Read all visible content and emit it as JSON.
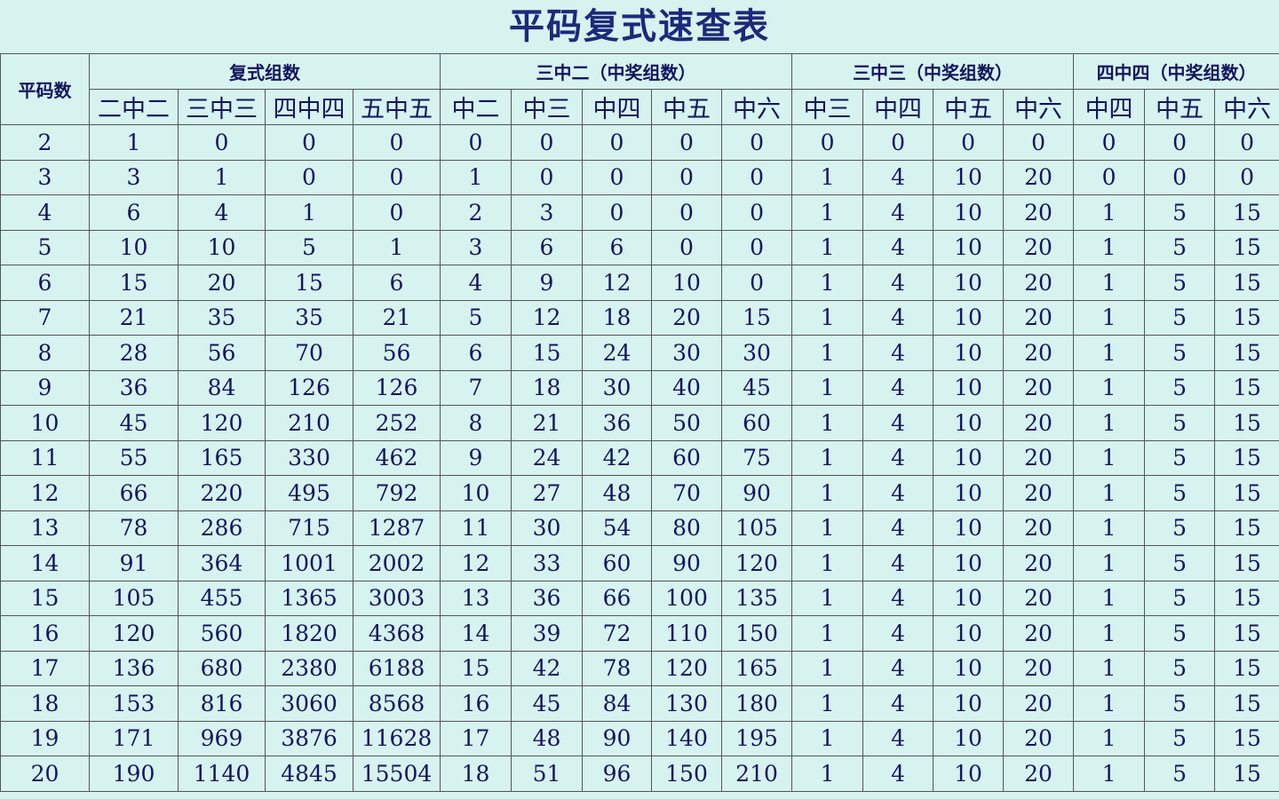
{
  "title": "平码复式速查表",
  "table": {
    "corner": "平码数",
    "groups": [
      {
        "label": "复式组数",
        "columns": [
          "二中二",
          "三中三",
          "四中四",
          "五中五"
        ]
      },
      {
        "label": "三中二（中奖组数）",
        "columns": [
          "中二",
          "中三",
          "中四",
          "中五",
          "中六"
        ]
      },
      {
        "label": "三中三（中奖组数）",
        "columns": [
          "中三",
          "中四",
          "中五",
          "中六"
        ]
      },
      {
        "label": "四中四（中奖组数）",
        "columns": [
          "中四",
          "中五",
          "中六"
        ]
      }
    ],
    "rows": [
      [
        2,
        1,
        0,
        0,
        0,
        0,
        0,
        0,
        0,
        0,
        0,
        0,
        0,
        0,
        0,
        0,
        0
      ],
      [
        3,
        3,
        1,
        0,
        0,
        1,
        0,
        0,
        0,
        0,
        1,
        4,
        10,
        20,
        0,
        0,
        0
      ],
      [
        4,
        6,
        4,
        1,
        0,
        2,
        3,
        0,
        0,
        0,
        1,
        4,
        10,
        20,
        1,
        5,
        15
      ],
      [
        5,
        10,
        10,
        5,
        1,
        3,
        6,
        6,
        0,
        0,
        1,
        4,
        10,
        20,
        1,
        5,
        15
      ],
      [
        6,
        15,
        20,
        15,
        6,
        4,
        9,
        12,
        10,
        0,
        1,
        4,
        10,
        20,
        1,
        5,
        15
      ],
      [
        7,
        21,
        35,
        35,
        21,
        5,
        12,
        18,
        20,
        15,
        1,
        4,
        10,
        20,
        1,
        5,
        15
      ],
      [
        8,
        28,
        56,
        70,
        56,
        6,
        15,
        24,
        30,
        30,
        1,
        4,
        10,
        20,
        1,
        5,
        15
      ],
      [
        9,
        36,
        84,
        126,
        126,
        7,
        18,
        30,
        40,
        45,
        1,
        4,
        10,
        20,
        1,
        5,
        15
      ],
      [
        10,
        45,
        120,
        210,
        252,
        8,
        21,
        36,
        50,
        60,
        1,
        4,
        10,
        20,
        1,
        5,
        15
      ],
      [
        11,
        55,
        165,
        330,
        462,
        9,
        24,
        42,
        60,
        75,
        1,
        4,
        10,
        20,
        1,
        5,
        15
      ],
      [
        12,
        66,
        220,
        495,
        792,
        10,
        27,
        48,
        70,
        90,
        1,
        4,
        10,
        20,
        1,
        5,
        15
      ],
      [
        13,
        78,
        286,
        715,
        1287,
        11,
        30,
        54,
        80,
        105,
        1,
        4,
        10,
        20,
        1,
        5,
        15
      ],
      [
        14,
        91,
        364,
        1001,
        2002,
        12,
        33,
        60,
        90,
        120,
        1,
        4,
        10,
        20,
        1,
        5,
        15
      ],
      [
        15,
        105,
        455,
        1365,
        3003,
        13,
        36,
        66,
        100,
        135,
        1,
        4,
        10,
        20,
        1,
        5,
        15
      ],
      [
        16,
        120,
        560,
        1820,
        4368,
        14,
        39,
        72,
        110,
        150,
        1,
        4,
        10,
        20,
        1,
        5,
        15
      ],
      [
        17,
        136,
        680,
        2380,
        6188,
        15,
        42,
        78,
        120,
        165,
        1,
        4,
        10,
        20,
        1,
        5,
        15
      ],
      [
        18,
        153,
        816,
        3060,
        8568,
        16,
        45,
        84,
        130,
        180,
        1,
        4,
        10,
        20,
        1,
        5,
        15
      ],
      [
        19,
        171,
        969,
        3876,
        11628,
        17,
        48,
        90,
        140,
        195,
        1,
        4,
        10,
        20,
        1,
        5,
        15
      ],
      [
        20,
        190,
        1140,
        4845,
        15504,
        18,
        51,
        96,
        150,
        210,
        1,
        4,
        10,
        20,
        1,
        5,
        15
      ]
    ]
  }
}
